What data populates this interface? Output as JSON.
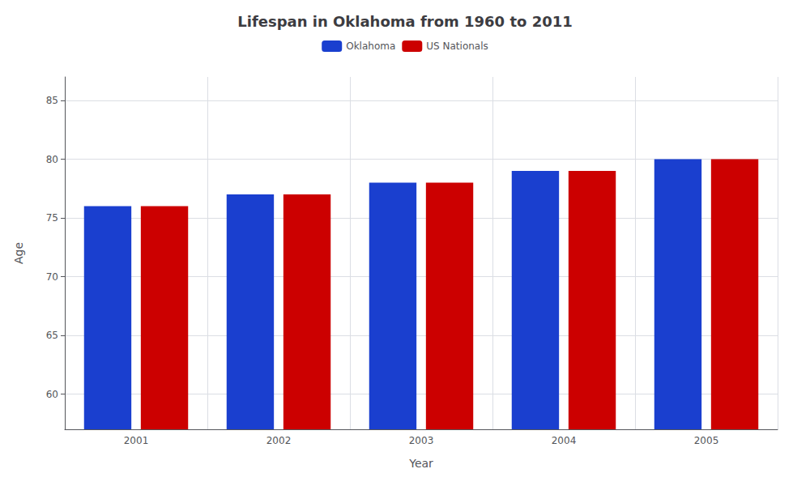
{
  "chart_data": {
    "type": "bar",
    "title": "Lifespan in Oklahoma from 1960 to 2011",
    "xlabel": "Year",
    "ylabel": "Age",
    "categories": [
      "2001",
      "2002",
      "2003",
      "2004",
      "2005"
    ],
    "series": [
      {
        "name": "Oklahoma",
        "color": "#1a3fcf",
        "values": [
          76,
          77,
          78,
          79,
          80
        ]
      },
      {
        "name": "US Nationals",
        "color": "#cc0000",
        "values": [
          76,
          77,
          78,
          79,
          80
        ]
      }
    ],
    "ylim": [
      57,
      87
    ],
    "yticks": [
      60,
      65,
      70,
      75,
      80,
      85
    ],
    "grid": true,
    "legend": "top"
  }
}
